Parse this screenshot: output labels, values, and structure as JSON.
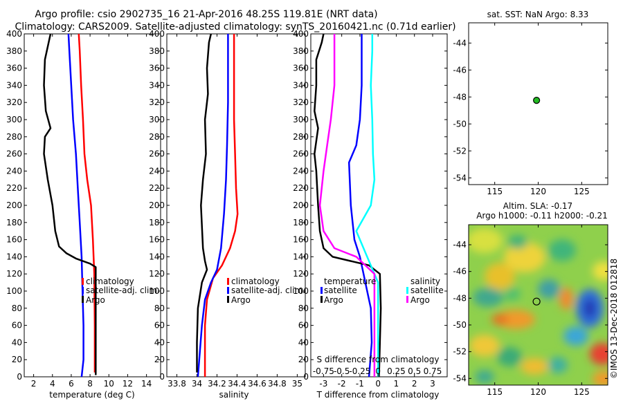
{
  "title": {
    "line1": "Argo profile: csio 2902735_16 21-Apr-2016 48.25S 119.81E (NRT data)",
    "line2": "Climatology: CARS2009. Satellite-adjusted climatology: synTS_20160421.nc (0.71d earlier)"
  },
  "colors": {
    "argo": "#000000",
    "clim": "#ff0000",
    "sat": "#0000ff",
    "s_sat": "#00ffff",
    "s_argo": "#ff00ff"
  },
  "chart_data": [
    {
      "type": "line",
      "id": "temp",
      "xlabel": "temperature (deg C)",
      "ylabel": "",
      "xlim": [
        1,
        15.5
      ],
      "ylim": [
        400,
        0
      ],
      "xticks": [
        2,
        4,
        6,
        8,
        10,
        12,
        14
      ],
      "yticks": [
        0,
        20,
        40,
        60,
        80,
        100,
        120,
        140,
        160,
        180,
        200,
        220,
        240,
        260,
        280,
        300,
        320,
        340,
        360,
        380,
        400
      ],
      "legend": [
        "climatology",
        "satellite-adj. clim.",
        "Argo"
      ],
      "series": [
        {
          "name": "climatology",
          "color": "clim",
          "points": [
            [
              8.5,
              5
            ],
            [
              8.5,
              60
            ],
            [
              8.45,
              120
            ],
            [
              8.3,
              160
            ],
            [
              8.1,
              200
            ],
            [
              7.7,
              230
            ],
            [
              7.4,
              260
            ],
            [
              7.25,
              300
            ],
            [
              7.05,
              340
            ],
            [
              6.9,
              380
            ],
            [
              6.8,
              400
            ]
          ]
        },
        {
          "name": "satellite-adj. clim.",
          "color": "sat",
          "points": [
            [
              7.1,
              0
            ],
            [
              7.3,
              20
            ],
            [
              7.3,
              60
            ],
            [
              7.2,
              100
            ],
            [
              7.1,
              140
            ],
            [
              6.9,
              180
            ],
            [
              6.7,
              220
            ],
            [
              6.5,
              260
            ],
            [
              6.2,
              300
            ],
            [
              6.0,
              340
            ],
            [
              5.8,
              380
            ],
            [
              5.7,
              400
            ]
          ]
        },
        {
          "name": "Argo",
          "color": "argo",
          "points": [
            [
              8.6,
              2
            ],
            [
              8.6,
              60
            ],
            [
              8.6,
              128
            ],
            [
              8.0,
              132
            ],
            [
              6.5,
              138
            ],
            [
              5.5,
              144
            ],
            [
              4.7,
              152
            ],
            [
              4.3,
              170
            ],
            [
              4.0,
              200
            ],
            [
              3.5,
              230
            ],
            [
              3.1,
              260
            ],
            [
              3.2,
              280
            ],
            [
              3.8,
              290
            ],
            [
              3.3,
              310
            ],
            [
              3.1,
              340
            ],
            [
              3.2,
              370
            ],
            [
              3.6,
              390
            ],
            [
              3.8,
              400
            ]
          ]
        }
      ]
    },
    {
      "type": "line",
      "id": "sal",
      "xlabel": "salinity",
      "ylabel": "",
      "xlim": [
        33.7,
        35.08
      ],
      "ylim": [
        400,
        0
      ],
      "xticks": [
        33.8,
        34,
        34.2,
        34.4,
        34.6,
        34.8,
        35
      ],
      "yticks": [
        0,
        20,
        40,
        60,
        80,
        100,
        120,
        140,
        160,
        180,
        200,
        220,
        240,
        260,
        280,
        300,
        320,
        340,
        360,
        380,
        400
      ],
      "legend": [
        "climatology",
        "satellite-adj. clim.",
        "Argo"
      ],
      "series": [
        {
          "name": "climatology",
          "color": "clim",
          "points": [
            [
              34.08,
              0
            ],
            [
              34.08,
              30
            ],
            [
              34.08,
              60
            ],
            [
              34.1,
              90
            ],
            [
              34.16,
              115
            ],
            [
              34.25,
              130
            ],
            [
              34.33,
              150
            ],
            [
              34.38,
              170
            ],
            [
              34.405,
              190
            ],
            [
              34.39,
              220
            ],
            [
              34.38,
              260
            ],
            [
              34.37,
              300
            ],
            [
              34.37,
              340
            ],
            [
              34.37,
              400
            ]
          ]
        },
        {
          "name": "satellite-adj. clim.",
          "color": "sat",
          "points": [
            [
              34.01,
              0
            ],
            [
              34.03,
              30
            ],
            [
              34.05,
              60
            ],
            [
              34.08,
              90
            ],
            [
              34.14,
              110
            ],
            [
              34.2,
              125
            ],
            [
              34.24,
              150
            ],
            [
              34.27,
              190
            ],
            [
              34.29,
              230
            ],
            [
              34.3,
              270
            ],
            [
              34.31,
              320
            ],
            [
              34.31,
              400
            ]
          ]
        },
        {
          "name": "Argo",
          "color": "argo",
          "points": [
            [
              34.0,
              5
            ],
            [
              34.0,
              40
            ],
            [
              34.01,
              80
            ],
            [
              34.05,
              110
            ],
            [
              34.1,
              125
            ],
            [
              34.08,
              135
            ],
            [
              34.06,
              150
            ],
            [
              34.04,
              200
            ],
            [
              34.06,
              230
            ],
            [
              34.09,
              260
            ],
            [
              34.08,
              300
            ],
            [
              34.11,
              330
            ],
            [
              34.1,
              360
            ],
            [
              34.12,
              390
            ],
            [
              34.14,
              400
            ]
          ]
        }
      ]
    },
    {
      "type": "line",
      "id": "diff",
      "xlabel": "T difference from climatology",
      "ylabel": "",
      "xlim": [
        -3.7,
        3.8
      ],
      "ylim": [
        400,
        0
      ],
      "xticks": [
        -3,
        -2,
        -1,
        0,
        1,
        2,
        3
      ],
      "yticks": [
        0,
        20,
        40,
        60,
        80,
        100,
        120,
        140,
        160,
        180,
        200,
        220,
        240,
        260,
        280,
        300,
        320,
        340,
        360,
        380,
        400
      ],
      "sx_title": "S difference from climatology",
      "sxticks": [
        "-0.75",
        "-0.5",
        "-0.25",
        "0",
        "0.25",
        "0.5",
        "0.75"
      ],
      "legend_t": [
        "temperature",
        "satellite",
        "Argo"
      ],
      "legend_s": [
        "salinity",
        "satellite",
        "Argo"
      ],
      "series": [
        {
          "name": "T satellite",
          "color": "sat",
          "points": [
            [
              -0.5,
              0
            ],
            [
              -0.35,
              40
            ],
            [
              -0.4,
              80
            ],
            [
              -0.6,
              100
            ],
            [
              -0.8,
              120
            ],
            [
              -1.0,
              140
            ],
            [
              -1.3,
              160
            ],
            [
              -1.5,
              200
            ],
            [
              -1.6,
              250
            ],
            [
              -1.2,
              270
            ],
            [
              -1.0,
              300
            ],
            [
              -0.9,
              340
            ],
            [
              -0.9,
              380
            ],
            [
              -0.9,
              400
            ]
          ]
        },
        {
          "name": "T Argo",
          "color": "argo",
          "points": [
            [
              0.05,
              0
            ],
            [
              0.1,
              40
            ],
            [
              0.15,
              80
            ],
            [
              0.1,
              120
            ],
            [
              -0.5,
              130
            ],
            [
              -1.5,
              135
            ],
            [
              -2.5,
              140
            ],
            [
              -3.0,
              150
            ],
            [
              -3.2,
              170
            ],
            [
              -3.3,
              200
            ],
            [
              -3.4,
              240
            ],
            [
              -3.5,
              260
            ],
            [
              -3.3,
              290
            ],
            [
              -3.5,
              310
            ],
            [
              -3.4,
              340
            ],
            [
              -3.4,
              370
            ],
            [
              -3.1,
              390
            ],
            [
              -3.0,
              400
            ]
          ]
        },
        {
          "name": "S satellite",
          "color": "s_sat",
          "points": [
            [
              0.0,
              0
            ],
            [
              0.0,
              60
            ],
            [
              0.0,
              110
            ],
            [
              -0.15,
              140
            ],
            [
              -0.3,
              170
            ],
            [
              -0.1,
              200
            ],
            [
              -0.05,
              230
            ],
            [
              -0.07,
              260
            ],
            [
              -0.08,
              300
            ],
            [
              -0.1,
              340
            ],
            [
              -0.08,
              380
            ],
            [
              -0.08,
              400
            ]
          ]
        },
        {
          "name": "S Argo",
          "color": "s_argo",
          "points": [
            [
              -0.05,
              0
            ],
            [
              -0.05,
              60
            ],
            [
              -0.05,
              100
            ],
            [
              -0.05,
              120
            ],
            [
              -0.3,
              140
            ],
            [
              -0.6,
              150
            ],
            [
              -0.75,
              170
            ],
            [
              -0.8,
              200
            ],
            [
              -0.75,
              240
            ],
            [
              -0.7,
              270
            ],
            [
              -0.65,
              300
            ],
            [
              -0.6,
              340
            ],
            [
              -0.6,
              380
            ],
            [
              -0.6,
              400
            ]
          ]
        }
      ]
    },
    {
      "type": "scatter",
      "id": "sst",
      "title": "sat. SST: NaN Argo: 8.33",
      "xlim": [
        112,
        128
      ],
      "ylim": [
        -54.5,
        -42.5
      ],
      "xticks": [
        115,
        120,
        125
      ],
      "yticks": [
        -44,
        -46,
        -48,
        -50,
        -52,
        -54
      ],
      "points": [
        [
          119.81,
          -48.25
        ]
      ]
    },
    {
      "type": "heatmap",
      "id": "sla",
      "title": "Altim. SLA: -0.17",
      "subtitle": "Argo h1000: -0.11 h2000: -0.21",
      "xlim": [
        112,
        128
      ],
      "ylim": [
        -54.5,
        -42.5
      ],
      "xticks": [
        115,
        120,
        125
      ],
      "yticks": [
        -44,
        -46,
        -48,
        -50,
        -52,
        -54
      ],
      "points": [
        [
          119.81,
          -48.25
        ]
      ]
    }
  ],
  "watermark": "©IMOS 13-Dec-2018 012818"
}
